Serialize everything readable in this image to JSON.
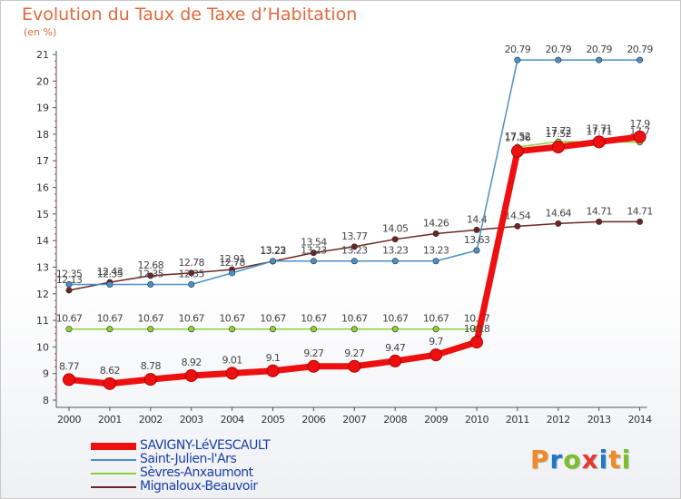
{
  "title": "Evolution du Taux de Taxe d’Habitation",
  "unit": "(en %)",
  "logo": {
    "text": "Proxiti",
    "colors": [
      "#f08a24",
      "#1f78c8",
      "#7bbf2a",
      "#e23b2e",
      "#1f78c8",
      "#f08a24",
      "#7bbf2a"
    ]
  },
  "chart_data": {
    "type": "line",
    "x": [
      "2000",
      "2001",
      "2002",
      "2003",
      "2004",
      "2005",
      "2006",
      "2007",
      "2008",
      "2009",
      "2010",
      "2011",
      "2012",
      "2013",
      "2014"
    ],
    "ylim": [
      8,
      21
    ],
    "yticks": [
      "8",
      "9",
      "10",
      "11",
      "12",
      "13",
      "14",
      "15",
      "16",
      "17",
      "18",
      "19",
      "20",
      "21"
    ],
    "grid": false,
    "legend_position": "bottom-left",
    "series": [
      {
        "name": "Mignaloux-Beauvoir",
        "color": "#6e2525",
        "values": [
          12.13,
          12.43,
          12.68,
          12.78,
          12.91,
          13.22,
          13.54,
          13.77,
          14.05,
          14.26,
          14.4,
          14.54,
          14.64,
          14.71,
          14.71
        ],
        "labels": [
          "12.13",
          "12.43",
          "12.68",
          "12.78",
          "12.91",
          "13.22",
          "13.54",
          "13.77",
          "14.05",
          "14.26",
          "14.4",
          "14.54",
          "14.64",
          "14.71",
          "14.71"
        ]
      },
      {
        "name": "Saint-Julien-l'Ars",
        "color": "#4a90c8",
        "values": [
          12.35,
          12.35,
          12.35,
          12.35,
          12.78,
          13.23,
          13.23,
          13.23,
          13.23,
          13.23,
          13.63,
          20.79,
          20.79,
          20.79,
          20.79
        ],
        "labels": [
          "12.35",
          "12.35",
          "12.35",
          "12.35",
          "12.78",
          "13.23",
          "13.23",
          "13.23",
          "13.23",
          "13.23",
          "13.63",
          "20.79",
          "20.79",
          "20.79",
          "20.79"
        ]
      },
      {
        "name": "Sèvres-Anxaumont",
        "color": "#8cd136",
        "values": [
          10.67,
          10.67,
          10.67,
          10.67,
          10.67,
          10.67,
          10.67,
          10.67,
          10.67,
          10.67,
          10.67,
          17.52,
          17.72,
          17.71,
          17.7
        ],
        "labels": [
          "10.67",
          "10.67",
          "10.67",
          "10.67",
          "10.67",
          "10.67",
          "10.67",
          "10.67",
          "10.67",
          "10.67",
          "10.67",
          "17.52",
          "17.72",
          "17.71",
          "17.7"
        ]
      },
      {
        "name": "SAVIGNY-LéVESCAULT",
        "color": "#ee1010",
        "values": [
          8.77,
          8.62,
          8.78,
          8.92,
          9.01,
          9.1,
          9.27,
          9.27,
          9.47,
          9.7,
          10.18,
          17.36,
          17.52,
          17.71,
          17.9
        ],
        "labels": [
          "8.77",
          "8.62",
          "8.78",
          "8.92",
          "9.01",
          "9.1",
          "9.27",
          "9.27",
          "9.47",
          "9.7",
          "10.18",
          "17.36",
          "17.52",
          "17.71",
          "17.9"
        ]
      }
    ],
    "legend": [
      "SAVIGNY-LéVESCAULT",
      "Saint-Julien-l'Ars",
      "Sèvres-Anxaumont",
      "Mignaloux-Beauvoir"
    ]
  }
}
